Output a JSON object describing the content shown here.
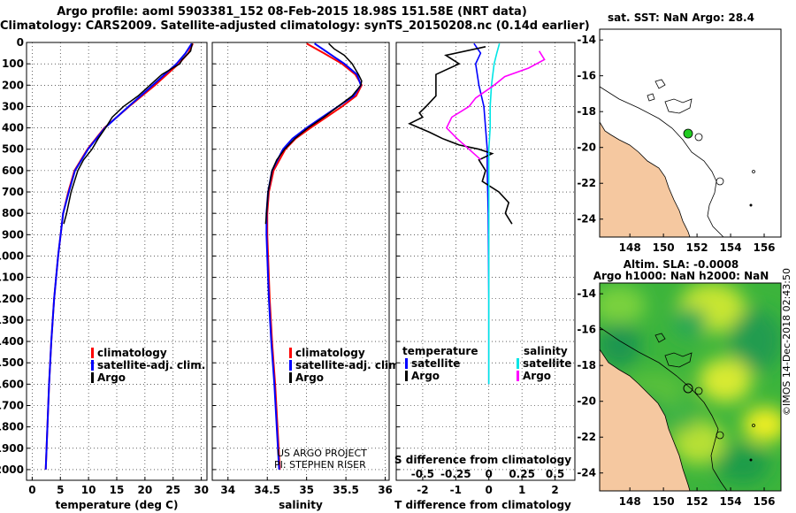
{
  "header": {
    "line1": "Argo profile: aoml 5903381_152 08-Feb-2015 18.98S 151.58E (NRT data)",
    "line2": "Climatology: CARS2009. Satellite-adjusted climatology: synTS_20150208.nc (0.14d earlier)"
  },
  "colors": {
    "climatology": "#ff0000",
    "satellite": "#0000ff",
    "argo": "#000000",
    "sat_salinity": "#00e5e5",
    "argo_salinity": "#ff00ff",
    "land": "#f5c8a0",
    "float": "#22cc22"
  },
  "depth_axis": {
    "ticks": [
      "0",
      "100",
      "200",
      "300",
      "400",
      "500",
      "600",
      "700",
      "800",
      "900",
      "1000",
      "1100",
      "1200",
      "1300",
      "1400",
      "1500",
      "1600",
      "1700",
      "1800",
      "1900",
      "2000"
    ]
  },
  "temp_panel": {
    "xlabel": "temperature (deg C)",
    "ticks": [
      "0",
      "5",
      "10",
      "15",
      "20",
      "25",
      "30"
    ],
    "legend": [
      "climatology",
      "satellite-adj. clim.",
      "Argo"
    ]
  },
  "sal_panel": {
    "xlabel": "salinity",
    "ticks": [
      "34",
      "34.5",
      "35",
      "35.5",
      "36"
    ],
    "legend": [
      "climatology",
      "satellite-adj. clim.",
      "Argo"
    ],
    "credit1": "US ARGO PROJECT",
    "credit2": "PI: STEPHEN RISER"
  },
  "diff_panel": {
    "xlabel": "T difference from climatology",
    "top_label": "S difference from climatology",
    "t_ticks": [
      "-2",
      "-1",
      "0",
      "1",
      "2"
    ],
    "s_ticks": [
      "-0.5",
      "-0.25",
      "0",
      "0.25",
      "0.5"
    ],
    "legend_left_head": "temperature",
    "legend_right_head": "salinity",
    "legend_items": [
      "satellite",
      "Argo"
    ]
  },
  "sst_map": {
    "title": "sat. SST: NaN Argo: 28.4",
    "yticks": [
      "-14",
      "-16",
      "-18",
      "-20",
      "-22",
      "-24"
    ],
    "xticks": [
      "148",
      "150",
      "152",
      "154",
      "156"
    ]
  },
  "sla_map": {
    "title1": "Altim. SLA: -0.0008",
    "title2": "Argo h1000: NaN h2000: NaN",
    "yticks": [
      "-14",
      "-16",
      "-18",
      "-20",
      "-22",
      "-24"
    ],
    "xticks": [
      "148",
      "150",
      "152",
      "154",
      "156"
    ]
  },
  "watermark": "©IMOS 14-Dec-2018 02:43:50",
  "chart_data": [
    {
      "type": "line",
      "name": "temperature_profile",
      "xlabel": "temperature (deg C)",
      "ylabel": "depth (m)",
      "xlim": [
        -1,
        31
      ],
      "ylim": [
        2050,
        0
      ],
      "series": [
        {
          "name": "climatology",
          "depth": [
            5,
            50,
            100,
            200,
            300,
            400,
            500,
            600,
            700,
            800,
            1000,
            1200,
            1400,
            1600,
            2000
          ],
          "values": [
            28.5,
            27.7,
            26.0,
            21.8,
            17.2,
            12.8,
            9.8,
            7.5,
            6.4,
            5.5,
            4.6,
            3.9,
            3.4,
            3.0,
            2.4
          ]
        },
        {
          "name": "satellite-adj. clim.",
          "depth": [
            5,
            50,
            100,
            200,
            300,
            400,
            500,
            600,
            700,
            800,
            1000,
            1200,
            1400,
            1600,
            2000
          ],
          "values": [
            28.3,
            27.2,
            25.6,
            21.4,
            17.1,
            12.9,
            9.9,
            7.6,
            6.5,
            5.5,
            4.6,
            3.9,
            3.4,
            3.0,
            2.4
          ]
        },
        {
          "name": "Argo",
          "depth": [
            5,
            40,
            80,
            100,
            150,
            200,
            250,
            300,
            350,
            400,
            450,
            500,
            550,
            600,
            700,
            800,
            850
          ],
          "values": [
            28.4,
            28.1,
            26.6,
            26.2,
            23.0,
            20.9,
            18.8,
            16.2,
            14.2,
            13.0,
            11.7,
            10.6,
            9.1,
            8.1,
            6.9,
            6.1,
            5.6
          ]
        }
      ]
    },
    {
      "type": "line",
      "name": "salinity_profile",
      "xlabel": "salinity",
      "ylabel": "depth (m)",
      "xlim": [
        33.8,
        36.05
      ],
      "ylim": [
        2050,
        0
      ],
      "series": [
        {
          "name": "climatology",
          "depth": [
            5,
            50,
            100,
            150,
            200,
            250,
            300,
            350,
            400,
            450,
            500,
            600,
            700,
            800,
            900,
            1000,
            1200,
            1400,
            1600,
            2000
          ],
          "values": [
            35.0,
            35.22,
            35.45,
            35.62,
            35.7,
            35.63,
            35.45,
            35.25,
            35.05,
            34.86,
            34.73,
            34.58,
            34.52,
            34.5,
            34.5,
            34.51,
            34.53,
            34.56,
            34.6,
            34.66
          ]
        },
        {
          "name": "satellite-adj. clim.",
          "depth": [
            5,
            50,
            100,
            150,
            200,
            250,
            300,
            350,
            400,
            450,
            500,
            600,
            700,
            800,
            900,
            1000,
            1200,
            1400,
            1600,
            2000
          ],
          "values": [
            35.1,
            35.28,
            35.48,
            35.64,
            35.69,
            35.6,
            35.4,
            35.2,
            35.0,
            34.82,
            34.7,
            34.56,
            34.51,
            34.49,
            34.49,
            34.5,
            34.52,
            34.55,
            34.59,
            34.65
          ]
        },
        {
          "name": "Argo",
          "depth": [
            5,
            30,
            60,
            100,
            150,
            180,
            200,
            250,
            300,
            350,
            400,
            450,
            500,
            550,
            600,
            700,
            800,
            850
          ],
          "values": [
            35.28,
            35.35,
            35.48,
            35.58,
            35.66,
            35.7,
            35.69,
            35.58,
            35.4,
            35.22,
            35.02,
            34.85,
            34.72,
            34.62,
            34.56,
            34.51,
            34.49,
            34.48
          ]
        }
      ]
    },
    {
      "type": "line",
      "name": "difference_profile",
      "xlabel": "T difference from climatology",
      "x2label": "S difference from climatology",
      "xlim": [
        -2.8,
        2.6
      ],
      "x2lim": [
        -0.7,
        0.65
      ],
      "ylim": [
        2050,
        0
      ],
      "series": [
        {
          "name": "satellite (temperature)",
          "axis": "T",
          "depth": [
            5,
            50,
            100,
            200,
            300,
            400,
            500,
            600,
            800,
            1000,
            1200,
            1400,
            1600
          ],
          "values": [
            -0.45,
            -0.25,
            -0.4,
            -0.3,
            -0.15,
            -0.1,
            -0.05,
            -0.05,
            -0.02,
            -0.01,
            0,
            0,
            0
          ]
        },
        {
          "name": "Argo (temperature)",
          "axis": "T",
          "depth": [
            20,
            60,
            100,
            150,
            250,
            300,
            330,
            350,
            380,
            400,
            420,
            450,
            480,
            500,
            520,
            550,
            600,
            650,
            700,
            750,
            800,
            850
          ],
          "values": [
            -0.1,
            -1.3,
            -0.9,
            -1.6,
            -1.6,
            -1.9,
            -2.1,
            -2.0,
            -2.4,
            -2.1,
            -1.8,
            -1.4,
            -0.9,
            -0.3,
            0.1,
            -0.3,
            -0.1,
            -0.2,
            0.3,
            0.6,
            0.5,
            0.7
          ]
        },
        {
          "name": "satellite (salinity)",
          "axis": "S",
          "depth": [
            5,
            50,
            100,
            200,
            300,
            400,
            500,
            600,
            800,
            1000,
            1200,
            1400,
            1600
          ],
          "values": [
            0.08,
            0.06,
            0.04,
            0.02,
            0.01,
            0.01,
            0,
            0,
            0,
            0,
            0,
            0,
            0
          ]
        },
        {
          "name": "Argo (salinity)",
          "axis": "S",
          "depth": [
            40,
            80,
            120,
            160,
            200,
            260,
            300,
            350,
            400,
            450,
            500,
            550
          ],
          "values": [
            0.38,
            0.42,
            0.3,
            0.12,
            0.04,
            -0.1,
            -0.15,
            -0.28,
            -0.32,
            -0.24,
            -0.15,
            -0.06
          ]
        }
      ]
    }
  ]
}
